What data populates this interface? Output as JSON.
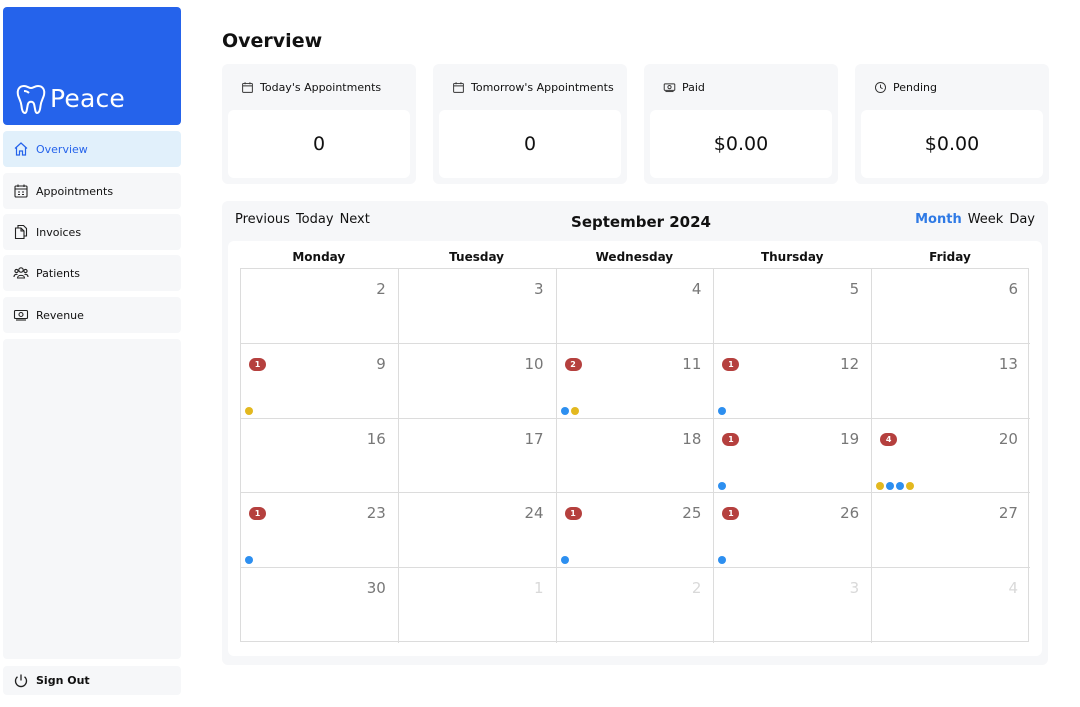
{
  "brand": {
    "name": "Peace",
    "color": "#2563eb"
  },
  "nav": {
    "items": [
      {
        "label": "Overview",
        "icon": "home-icon",
        "active": true
      },
      {
        "label": "Appointments",
        "icon": "calendar-icon",
        "active": false
      },
      {
        "label": "Invoices",
        "icon": "documents-icon",
        "active": false
      },
      {
        "label": "Patients",
        "icon": "users-icon",
        "active": false
      },
      {
        "label": "Revenue",
        "icon": "money-icon",
        "active": false
      }
    ],
    "signout_label": "Sign Out"
  },
  "page": {
    "title": "Overview"
  },
  "stats": [
    {
      "label": "Today's Appointments",
      "value": "0",
      "icon": "calendar-icon"
    },
    {
      "label": "Tomorrow's Appointments",
      "value": "0",
      "icon": "calendar-icon"
    },
    {
      "label": "Paid",
      "value": "$0.00",
      "icon": "money-icon"
    },
    {
      "label": "Pending",
      "value": "$0.00",
      "icon": "clock-icon"
    }
  ],
  "calendar": {
    "nav": {
      "previous": "Previous",
      "today": "Today",
      "next": "Next"
    },
    "title": "September 2024",
    "views": [
      {
        "label": "Month",
        "active": true
      },
      {
        "label": "Week",
        "active": false
      },
      {
        "label": "Day",
        "active": false
      }
    ],
    "weekdays": [
      "Monday",
      "Tuesday",
      "Wednesday",
      "Thursday",
      "Friday"
    ],
    "colors": {
      "badge": "#b5403e",
      "blue_dot": "#2d8ff0",
      "yellow_dot": "#e3b81f",
      "accent": "#2f7ae5"
    },
    "weeks": [
      [
        {
          "day": "2"
        },
        {
          "day": "3"
        },
        {
          "day": "4"
        },
        {
          "day": "5"
        },
        {
          "day": "6"
        }
      ],
      [
        {
          "day": "9",
          "badge": "1",
          "dots": [
            "yellow"
          ]
        },
        {
          "day": "10"
        },
        {
          "day": "11",
          "badge": "2",
          "dots": [
            "blue",
            "yellow"
          ]
        },
        {
          "day": "12",
          "badge": "1",
          "dots": [
            "blue"
          ]
        },
        {
          "day": "13"
        }
      ],
      [
        {
          "day": "16"
        },
        {
          "day": "17"
        },
        {
          "day": "18"
        },
        {
          "day": "19",
          "badge": "1",
          "dots": [
            "blue"
          ]
        },
        {
          "day": "20",
          "badge": "4",
          "dots": [
            "yellow",
            "blue",
            "blue",
            "yellow"
          ]
        }
      ],
      [
        {
          "day": "23",
          "badge": "1",
          "dots": [
            "blue"
          ]
        },
        {
          "day": "24"
        },
        {
          "day": "25",
          "badge": "1",
          "dots": [
            "blue"
          ]
        },
        {
          "day": "26",
          "badge": "1",
          "dots": [
            "blue"
          ]
        },
        {
          "day": "27"
        }
      ],
      [
        {
          "day": "30"
        },
        {
          "day": "1",
          "muted": true
        },
        {
          "day": "2",
          "muted": true
        },
        {
          "day": "3",
          "muted": true
        },
        {
          "day": "4",
          "muted": true
        }
      ]
    ]
  }
}
